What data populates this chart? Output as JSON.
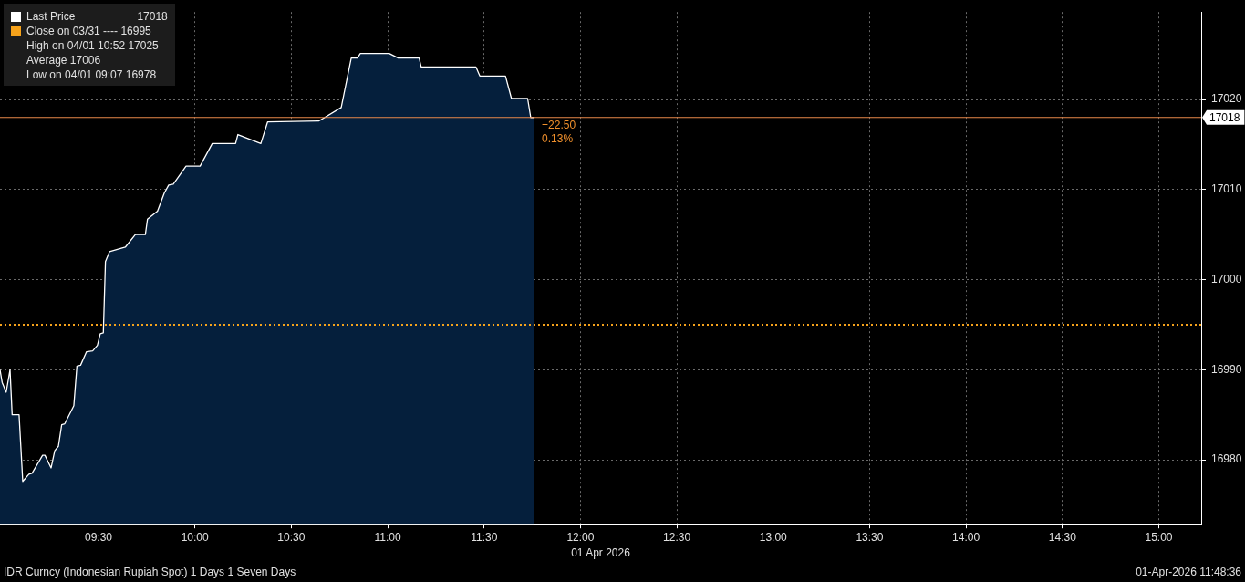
{
  "chart_data": {
    "type": "area",
    "title": "IDR Curncy (Indonesian Rupiah Spot) 1 Days 1 Seven Days",
    "subtitle": "01-Apr-2026 11:48:36",
    "xlabel": "01 Apr 2026",
    "x": [
      8.989,
      9.0,
      9.021,
      9.041,
      9.052,
      9.088,
      9.107,
      9.139,
      9.155,
      9.21,
      9.222,
      9.254,
      9.273,
      9.292,
      9.309,
      9.325,
      9.372,
      9.388,
      9.407,
      9.438,
      9.47,
      9.494,
      9.509,
      9.525,
      9.536,
      9.557,
      9.639,
      9.691,
      9.743,
      9.754,
      9.806,
      9.841,
      9.864,
      9.888,
      9.954,
      10.027,
      10.09,
      10.211,
      10.223,
      10.342,
      10.377,
      10.642,
      10.759,
      10.811,
      10.843,
      10.858,
      11.008,
      11.055,
      11.163,
      11.174,
      11.458,
      11.478,
      11.611,
      11.642,
      11.726,
      11.742,
      11.762
    ],
    "series": [
      {
        "name": "Last Price",
        "color": "#ffffff",
        "values": [
          16990,
          16988.6,
          16987.5,
          16990,
          16985,
          16985,
          16977.6,
          16978.4,
          16978.5,
          16980.5,
          16980.5,
          16979.1,
          16981,
          16981.5,
          16983.9,
          16984,
          16986,
          16990.4,
          16990.5,
          16992,
          16992.1,
          16992.7,
          16994,
          16994.1,
          17002,
          17003.1,
          17003.6,
          17005,
          17005,
          17006.7,
          17007.6,
          17009.6,
          17010.5,
          17010.6,
          17012.6,
          17012.6,
          17015.1,
          17015.1,
          17016.1,
          17015.1,
          17017.5,
          17017.6,
          17019.1,
          17024.6,
          17024.6,
          17025.1,
          17025.1,
          17024.6,
          17024.6,
          17023.6,
          17023.6,
          17022.6,
          17022.6,
          17020.1,
          17020.1,
          17018,
          17018
        ]
      }
    ],
    "xlim": [
      8.989,
      15.22
    ],
    "xticks": [
      {
        "value": 9.5,
        "label": "09:30"
      },
      {
        "value": 10,
        "label": "10:00"
      },
      {
        "value": 10.5,
        "label": "10:30"
      },
      {
        "value": 11,
        "label": "11:00"
      },
      {
        "value": 11.5,
        "label": "11:30"
      },
      {
        "value": 12,
        "label": "12:00"
      },
      {
        "value": 12.5,
        "label": "12:30"
      },
      {
        "value": 13,
        "label": "13:00"
      },
      {
        "value": 13.5,
        "label": "13:30"
      },
      {
        "value": 14,
        "label": "14:00"
      },
      {
        "value": 14.5,
        "label": "14:30"
      },
      {
        "value": 15,
        "label": "15:00"
      }
    ],
    "ylim": [
      16972.9,
      17029.7
    ],
    "yticks": [
      16980,
      16990,
      17000,
      17010,
      17020
    ],
    "grid": true,
    "legend": "top left",
    "ref_lines": [
      {
        "axis": "y",
        "value": 16995,
        "label": "Close on 03/31 ---- 16995",
        "color": "#f5a21b",
        "line_style": "dotted"
      },
      {
        "axis": "y",
        "value": 17018,
        "label": "17018",
        "color": "#e8894a",
        "line_style": "solid"
      }
    ],
    "annotations": [
      "High on 04/01 10:52 17025",
      "Average 17006",
      "Low on 04/01 09:07 16978",
      {
        "text": "+22.50",
        "x": 11.762,
        "y": 17018
      },
      {
        "text": "0.13%",
        "x": 11.762,
        "y": 17018
      }
    ]
  }
}
